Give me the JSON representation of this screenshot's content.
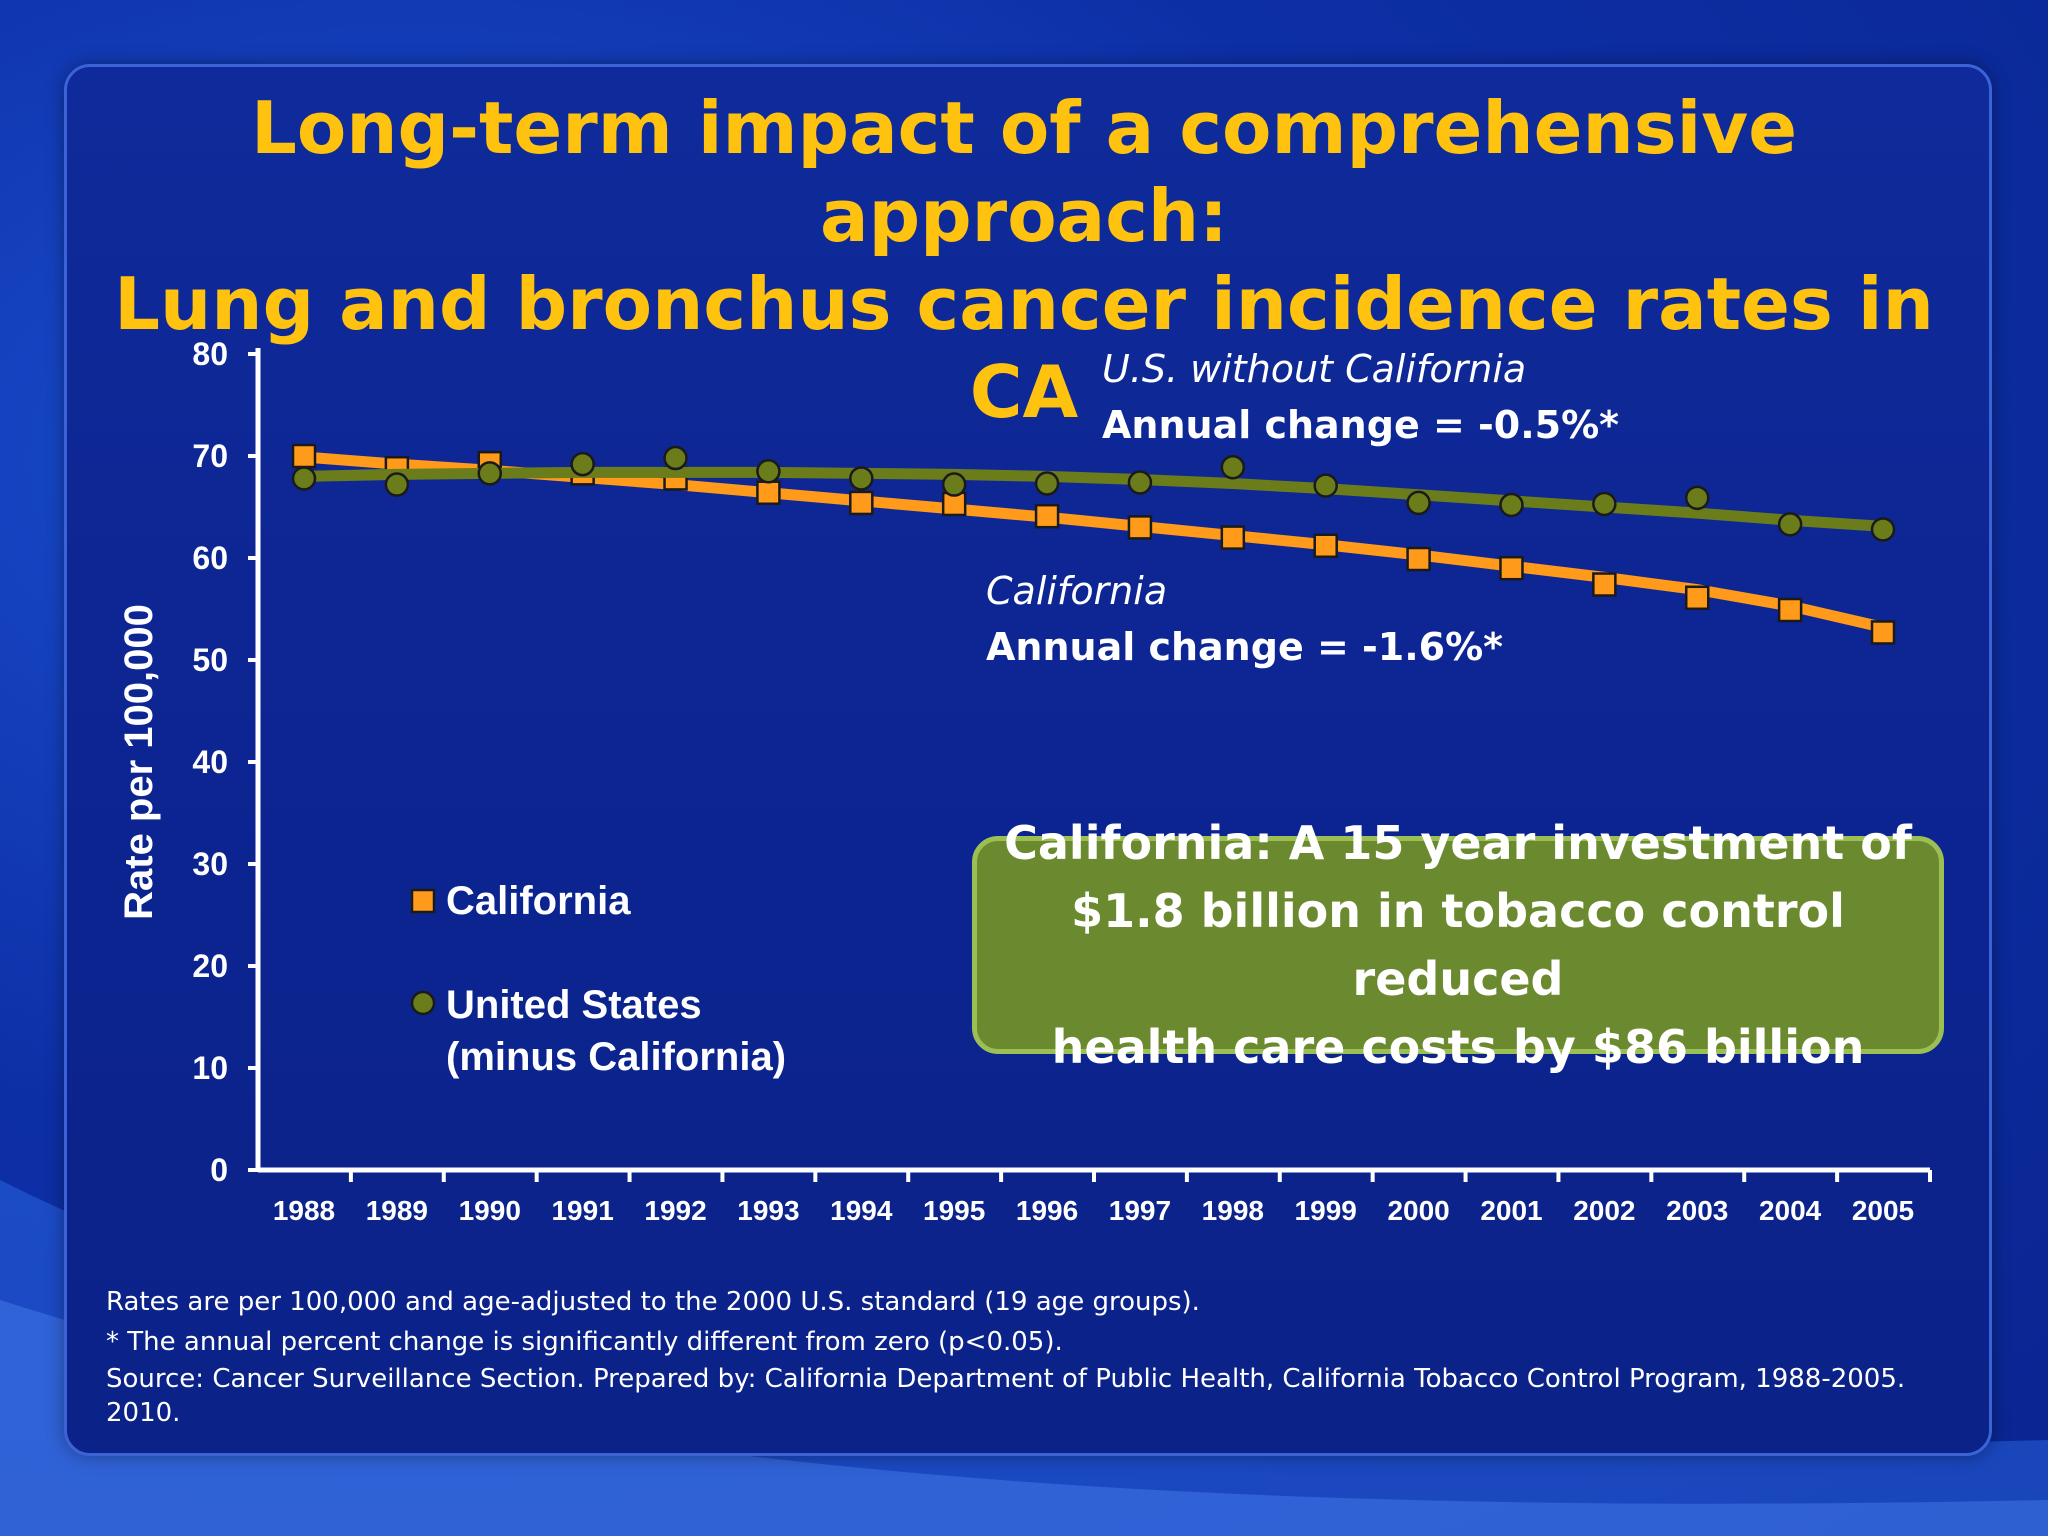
{
  "slide": {
    "title_line1": "Long-term impact of a comprehensive approach:",
    "title_line2": "Lung and bronchus cancer incidence rates in CA",
    "callout": "California: A 15 year investment of\n$1.8 billion in tobacco control reduced\nhealth care costs by $86 billion",
    "footnotes": [
      "Rates are per 100,000 and age-adjusted to the 2000 U.S. standard (19 age groups).",
      "* The annual percent change is significantly different from zero (p<0.05).",
      "Source: Cancer Surveillance Section.  Prepared by: California Department of Public Health, California Tobacco Control Program, 1988-2005. 2010."
    ]
  },
  "colors": {
    "california": "#ff9a1a",
    "us": "#6b7d1a",
    "title": "#ffc20e",
    "axis": "#ffffff"
  },
  "chart_data": {
    "type": "line",
    "title": "",
    "xlabel": "",
    "ylabel": "Rate per 100,000",
    "ylim": [
      0,
      80
    ],
    "yticks": [
      0,
      10,
      20,
      30,
      40,
      50,
      60,
      70,
      80
    ],
    "x": [
      "1988",
      "1989",
      "1990",
      "1991",
      "1992",
      "1993",
      "1994",
      "1995",
      "1996",
      "1997",
      "1998",
      "1999",
      "2000",
      "2001",
      "2002",
      "2003",
      "2004",
      "2005"
    ],
    "grid": false,
    "series": [
      {
        "name": "California",
        "marker": "square",
        "values": [
          70.0,
          68.8,
          69.3,
          68.3,
          67.8,
          66.4,
          65.4,
          65.3,
          64.1,
          63.0,
          62.0,
          61.2,
          59.9,
          59.0,
          57.4,
          56.1,
          54.9,
          52.7
        ],
        "trend": [
          69.9,
          69.2,
          68.6,
          67.9,
          67.2,
          66.4,
          65.6,
          64.8,
          64.0,
          63.1,
          62.2,
          61.3,
          60.3,
          59.2,
          58.1,
          56.9,
          55.3,
          53.2
        ],
        "annotation_name": "California",
        "annotation_change": "Annual change =  -1.6%*"
      },
      {
        "name": "United States\n(minus California)",
        "marker": "circle",
        "values": [
          67.8,
          67.2,
          68.3,
          69.2,
          69.8,
          68.5,
          67.8,
          67.2,
          67.3,
          67.4,
          68.9,
          67.1,
          65.4,
          65.2,
          65.3,
          65.9,
          63.3,
          62.8
        ],
        "trend": [
          68.0,
          68.2,
          68.3,
          68.4,
          68.4,
          68.4,
          68.3,
          68.2,
          68.0,
          67.7,
          67.3,
          66.8,
          66.2,
          65.6,
          65.0,
          64.4,
          63.7,
          63.1
        ],
        "annotation_name": "U.S. without California",
        "annotation_change": "Annual change =  -0.5%*"
      }
    ],
    "legend": {
      "placement": "bottom-left",
      "items": [
        "California",
        "United States\n(minus California)"
      ]
    }
  }
}
